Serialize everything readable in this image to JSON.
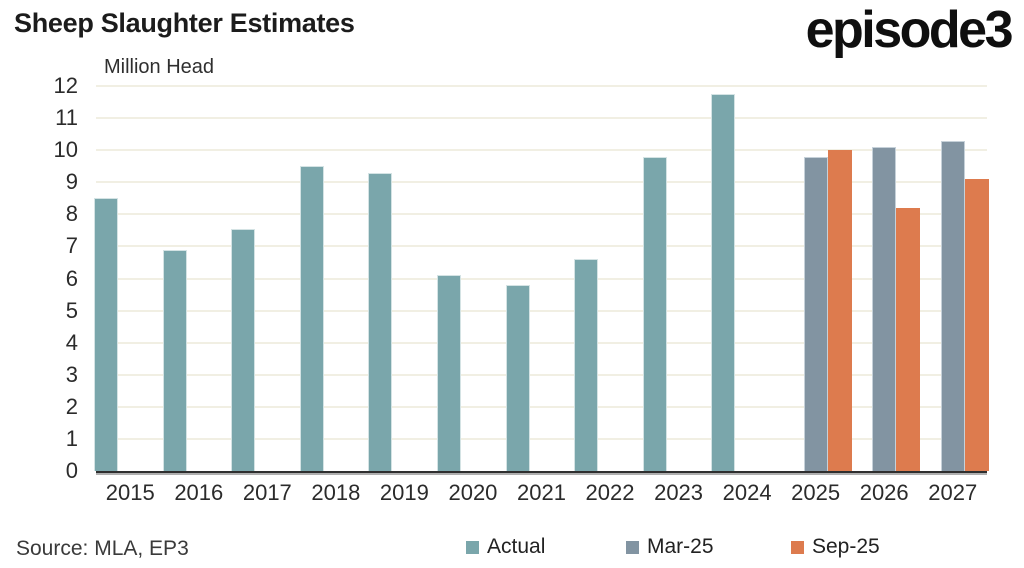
{
  "header": {
    "title": "Sheep Slaughter Estimates",
    "logo": "episode3"
  },
  "chart_data": {
    "type": "bar",
    "title": "Sheep Slaughter Estimates",
    "ylabel": "Million Head",
    "xlabel": "",
    "categories": [
      "2015",
      "2016",
      "2017",
      "2018",
      "2019",
      "2020",
      "2021",
      "2022",
      "2023",
      "2024",
      "2025",
      "2026",
      "2027"
    ],
    "series": [
      {
        "name": "Actual",
        "color": "#7aa6ab",
        "values": [
          8.5,
          6.9,
          7.55,
          9.5,
          9.3,
          6.1,
          5.8,
          6.6,
          9.8,
          11.75,
          null,
          null,
          null
        ]
      },
      {
        "name": "Mar-25",
        "color": "#8294a2",
        "values": [
          null,
          null,
          null,
          null,
          null,
          null,
          null,
          null,
          null,
          null,
          9.8,
          10.1,
          10.3
        ]
      },
      {
        "name": "Sep-25",
        "color": "#dd7b4e",
        "values": [
          null,
          null,
          null,
          null,
          null,
          null,
          null,
          null,
          null,
          null,
          10.0,
          8.2,
          9.1
        ]
      }
    ],
    "ylim": [
      0,
      12
    ],
    "yticks": [
      0,
      1,
      2,
      3,
      4,
      5,
      6,
      7,
      8,
      9,
      10,
      11,
      12
    ],
    "grid": true,
    "gridline_color": "#f1efe3",
    "legend_position": "bottom"
  },
  "footer": {
    "source": "Source: MLA, EP3"
  }
}
